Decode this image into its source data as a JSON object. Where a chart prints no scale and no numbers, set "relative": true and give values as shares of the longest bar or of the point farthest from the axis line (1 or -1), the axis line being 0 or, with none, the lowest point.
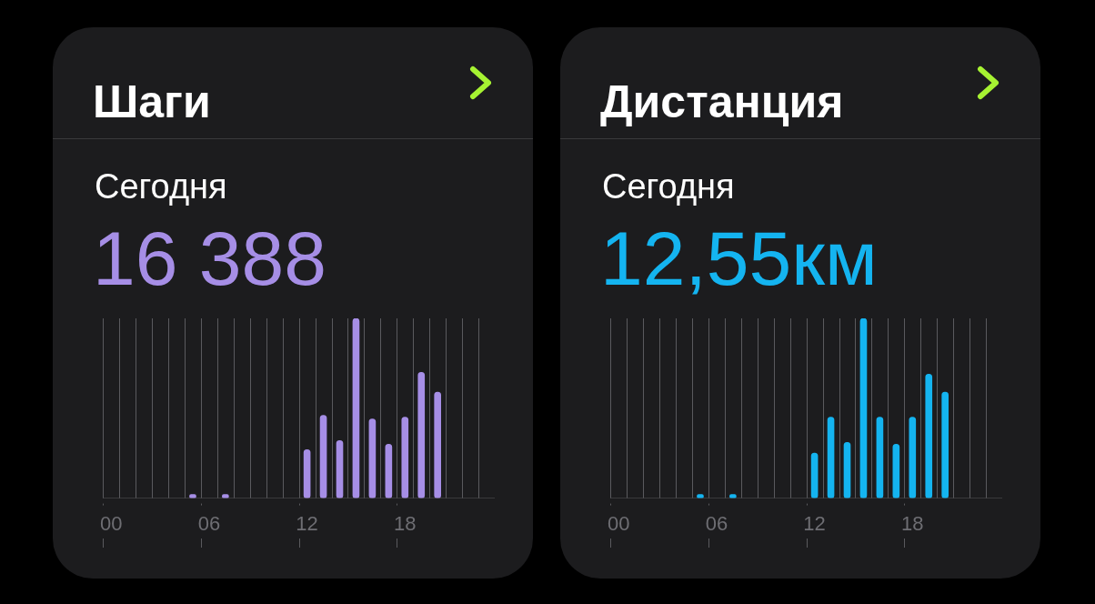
{
  "chart_data": [
    {
      "type": "bar",
      "title": "Шаги",
      "subtitle": "Сегодня",
      "annotations": [
        "16 388"
      ],
      "relative": true,
      "grid": "x",
      "tick_labels": "x",
      "legend": false,
      "categories": [
        "00",
        null,
        null,
        null,
        null,
        null,
        "06",
        null,
        null,
        null,
        null,
        null,
        "12",
        null,
        null,
        null,
        null,
        null,
        "18",
        null,
        null,
        null,
        null,
        null
      ],
      "series": [
        {
          "color": "#a68ee6",
          "values": [
            null,
            null,
            null,
            null,
            null,
            0.02,
            null,
            0.02,
            null,
            null,
            null,
            null,
            0.27,
            0.46,
            0.32,
            1,
            0.44,
            0.3,
            0.45,
            0.7,
            0.59,
            null,
            null,
            null
          ]
        }
      ]
    },
    {
      "type": "bar",
      "title": "Дистанция",
      "subtitle": "Сегодня",
      "annotations": [
        "12,55км"
      ],
      "relative": true,
      "grid": "x",
      "tick_labels": "x",
      "legend": false,
      "categories": [
        "00",
        null,
        null,
        null,
        null,
        null,
        "06",
        null,
        null,
        null,
        null,
        null,
        "12",
        null,
        null,
        null,
        null,
        null,
        "18",
        null,
        null,
        null,
        null,
        null
      ],
      "series": [
        {
          "color": "#14b4f0",
          "values": [
            null,
            null,
            null,
            null,
            null,
            0.02,
            null,
            0.02,
            null,
            null,
            null,
            null,
            0.25,
            0.45,
            0.31,
            1,
            0.45,
            0.3,
            0.45,
            0.69,
            0.59,
            null,
            null,
            null
          ]
        }
      ]
    }
  ]
}
